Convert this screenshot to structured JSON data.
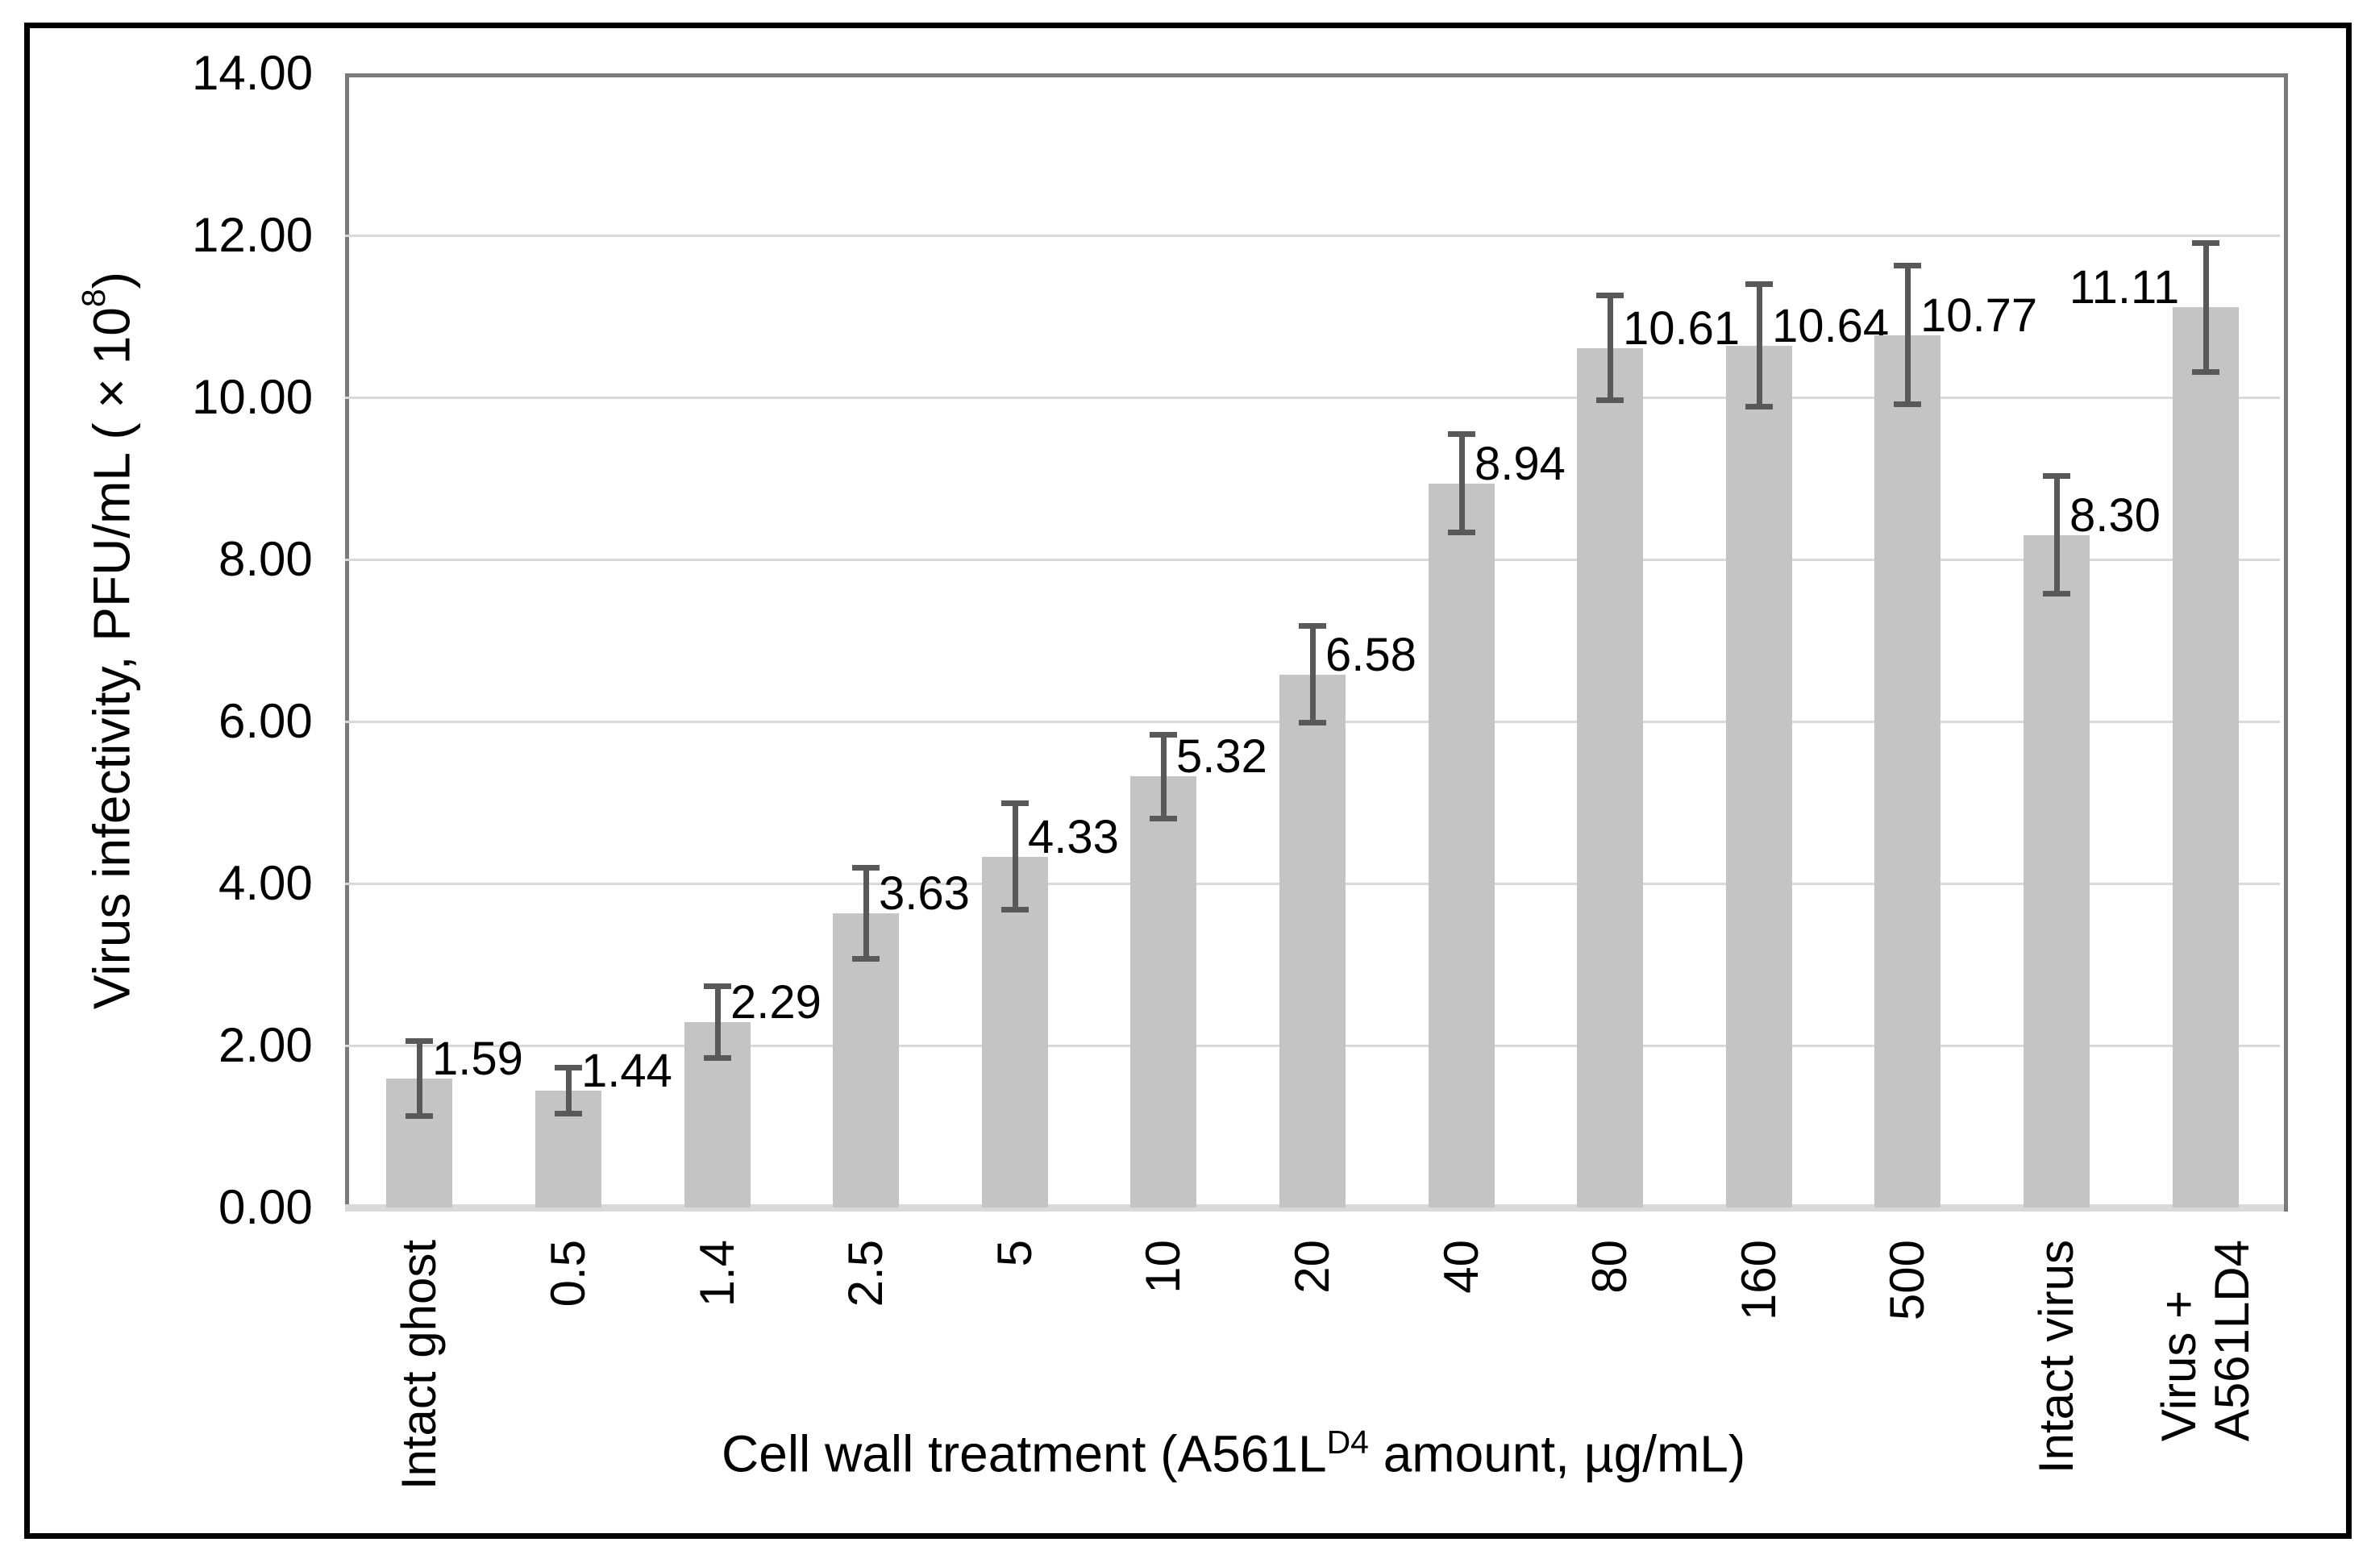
{
  "chart_data": {
    "type": "bar",
    "title": "",
    "categories": [
      "Intact ghost",
      "0.5",
      "1.4",
      "2.5",
      "5",
      "10",
      "20",
      "40",
      "80",
      "160",
      "500",
      "Intact virus",
      "Virus +\nA561LD4"
    ],
    "values": [
      1.59,
      1.44,
      2.29,
      3.63,
      4.33,
      5.32,
      6.58,
      8.94,
      10.61,
      10.64,
      10.77,
      8.3,
      11.11
    ],
    "errors": [
      0.5,
      0.32,
      0.48,
      0.6,
      0.69,
      0.55,
      0.63,
      0.64,
      0.68,
      0.79,
      0.89,
      0.76,
      0.83
    ],
    "data_labels": [
      "1.59",
      "1.44",
      "2.29",
      "3.63",
      "4.33",
      "5.32",
      "6.58",
      "8.94",
      "10.61",
      "10.64",
      "10.77",
      "8.30",
      "11.11"
    ],
    "label_side": [
      "right",
      "right",
      "right",
      "right",
      "right",
      "right",
      "right",
      "right",
      "right",
      "right",
      "right",
      "right",
      "left"
    ],
    "ytick_labels": [
      "0.00",
      "2.00",
      "4.00",
      "6.00",
      "8.00",
      "10.00",
      "12.00",
      "14.00"
    ],
    "ytick_values": [
      0,
      2,
      4,
      6,
      8,
      10,
      12,
      14
    ],
    "ylim": [
      0,
      14
    ],
    "grid": true,
    "legend": "none",
    "ylabel_prefix": "Virus infectivity, PFU/mL (×10",
    "ylabel_sup": "8",
    "ylabel_suffix": ")",
    "xlabel_prefix": "Cell wall treatment (A561L",
    "xlabel_sup": "D4",
    "xlabel_suffix": " amount, µg/mL)",
    "colors": {
      "bar_fill": "#c4c4c4",
      "error_bar": "#595959",
      "gridline": "#d9d9d9",
      "plot_border": "#7a7a7a",
      "axis_baseline": "#d9d9d9",
      "outer_frame": "#000000",
      "text": "#000000",
      "background": "#ffffff"
    }
  }
}
